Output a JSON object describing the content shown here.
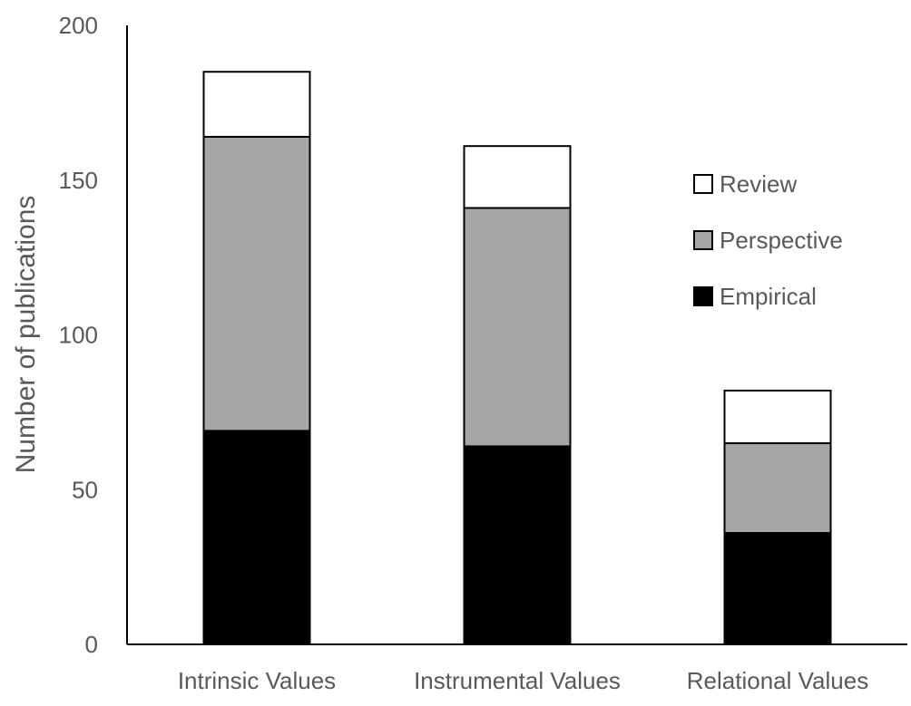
{
  "chart_data": {
    "type": "bar",
    "stacked": true,
    "categories": [
      "Intrinsic Values",
      "Instrumental Values",
      "Relational Values"
    ],
    "series": [
      {
        "name": "Empirical",
        "values": [
          69,
          64,
          36
        ],
        "color": "#000000"
      },
      {
        "name": "Perspective",
        "values": [
          95,
          77,
          29
        ],
        "color": "#a6a6a6"
      },
      {
        "name": "Review",
        "values": [
          21,
          20,
          17
        ],
        "color": "#ffffff"
      }
    ],
    "title": "",
    "xlabel": "",
    "ylabel": "Number of publications",
    "ylim": [
      0,
      200
    ],
    "yticks": [
      0,
      50,
      100,
      150,
      200
    ],
    "grid": false,
    "legend": {
      "placement": "right",
      "order": [
        "Review",
        "Perspective",
        "Empirical"
      ]
    }
  }
}
